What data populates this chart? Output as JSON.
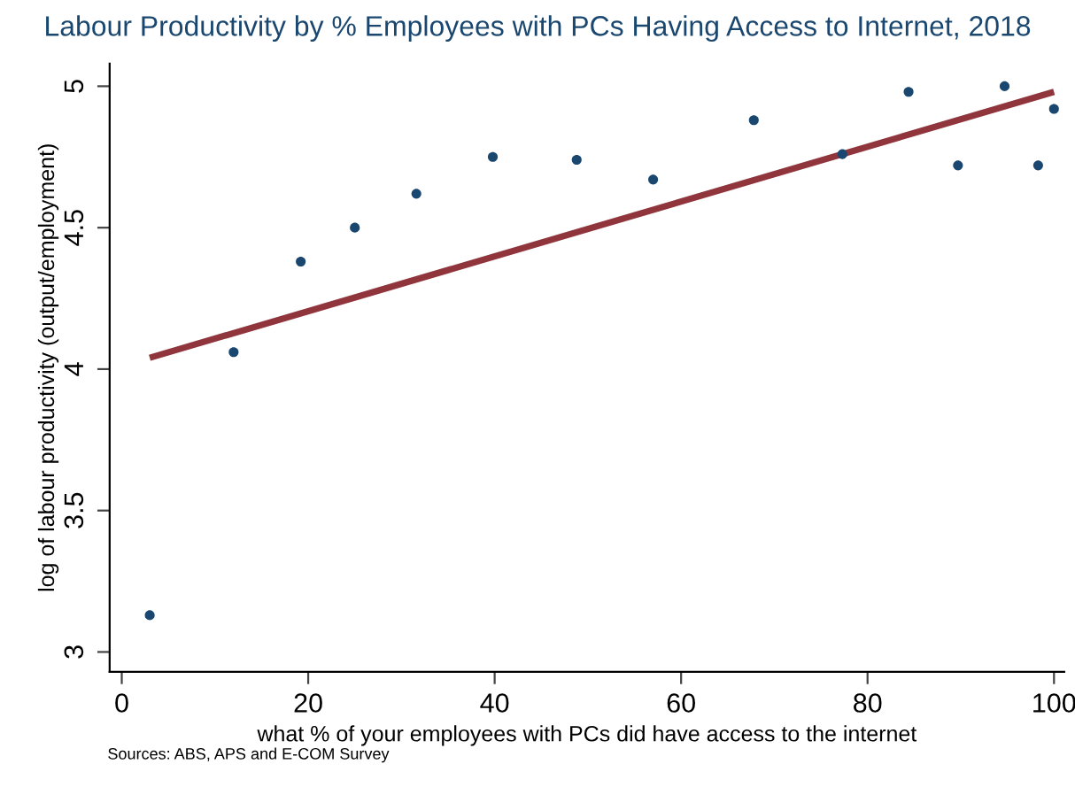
{
  "chart_data": {
    "type": "scatter",
    "title": "Labour Productivity by % Employees with PCs Having Access to Internet, 2018",
    "xlabel": "what % of your employees with PCs did have access to the internet",
    "ylabel": "log of labour productivity (output/employment)",
    "series": [
      {
        "color": "#1a476f",
        "x": [
          3.0,
          12.0,
          19.2,
          25.0,
          31.6,
          39.8,
          48.8,
          57.0,
          67.8,
          77.3,
          84.4,
          89.7,
          94.7,
          98.3,
          100.0
        ],
        "values": [
          3.13,
          4.06,
          4.38,
          4.5,
          4.62,
          4.75,
          4.74,
          4.67,
          4.88,
          4.76,
          4.98,
          4.72,
          5.0,
          4.72,
          4.92
        ]
      },
      {
        "type": "line",
        "marker": "none",
        "color": "#90353b",
        "x": [
          3.0,
          100.0
        ],
        "values": [
          4.04,
          4.98
        ]
      }
    ],
    "xlim": [
      -1.3,
      101.1
    ],
    "ylim": [
      2.93,
      5.08
    ],
    "xticks": [
      0,
      20,
      40,
      60,
      80,
      100
    ],
    "yticks": [
      3,
      3.5,
      4,
      4.5,
      5
    ],
    "grid": false,
    "legend": false,
    "marker": "circle",
    "annotations": [
      "Sources: ABS, APS and E-COM Survey"
    ]
  }
}
